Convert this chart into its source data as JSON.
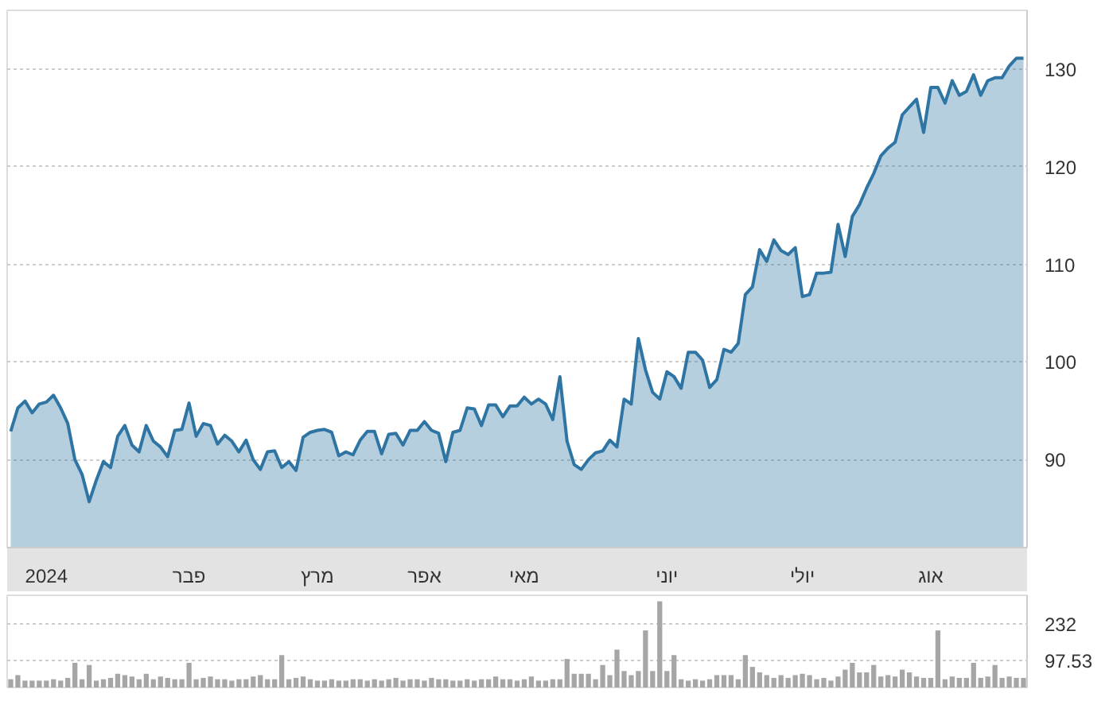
{
  "chart_data": [
    {
      "type": "area",
      "categories": [
        null,
        null,
        null,
        null,
        null,
        "2024",
        null,
        null,
        null,
        null,
        null,
        null,
        null,
        null,
        null,
        null,
        null,
        null,
        null,
        null,
        null,
        null,
        null,
        null,
        null,
        "פבר",
        null,
        null,
        null,
        null,
        null,
        null,
        null,
        null,
        null,
        null,
        null,
        null,
        null,
        null,
        null,
        null,
        null,
        "מרץ",
        null,
        null,
        null,
        null,
        null,
        null,
        null,
        null,
        null,
        null,
        null,
        null,
        null,
        null,
        "אפר",
        null,
        null,
        null,
        null,
        null,
        null,
        null,
        null,
        null,
        null,
        null,
        null,
        null,
        "מאי",
        null,
        null,
        null,
        null,
        null,
        null,
        null,
        null,
        null,
        null,
        null,
        null,
        null,
        null,
        null,
        null,
        null,
        null,
        null,
        "יוני",
        null,
        null,
        null,
        null,
        null,
        null,
        null,
        null,
        null,
        null,
        null,
        null,
        null,
        null,
        null,
        null,
        null,
        null,
        "יולי",
        null,
        null,
        null,
        null,
        null,
        null,
        null,
        null,
        null,
        null,
        null,
        null,
        null,
        null,
        null,
        null,
        null,
        "אוג",
        null,
        null,
        null,
        null,
        null,
        null,
        null,
        null,
        null,
        null,
        null,
        null,
        null
      ],
      "series": [
        {
          "color": "#2f75a4",
          "values": [
            92.9,
            95.3,
            96.0,
            94.8,
            95.7,
            95.9,
            96.6,
            95.3,
            93.7,
            90.0,
            88.5,
            85.7,
            87.9,
            89.8,
            89.2,
            92.4,
            93.5,
            91.5,
            90.8,
            93.5,
            91.9,
            91.3,
            90.3,
            93.0,
            93.1,
            95.8,
            92.4,
            93.7,
            93.5,
            91.6,
            92.5,
            91.9,
            90.8,
            92.0,
            90.0,
            89.0,
            90.8,
            90.9,
            89.2,
            89.8,
            88.9,
            92.3,
            92.8,
            93.0,
            93.1,
            92.8,
            90.4,
            90.8,
            90.5,
            92.0,
            92.9,
            92.9,
            90.6,
            92.6,
            92.7,
            91.5,
            93.0,
            93.0,
            93.9,
            93.0,
            92.7,
            89.8,
            92.8,
            93.0,
            95.3,
            95.2,
            93.5,
            95.6,
            95.6,
            94.4,
            95.5,
            95.5,
            96.4,
            95.7,
            96.2,
            95.7,
            94.1,
            98.5,
            91.9,
            89.5,
            89.0,
            90.0,
            90.7,
            90.9,
            92.0,
            91.3,
            96.2,
            95.7,
            102.4,
            99.2,
            96.9,
            96.2,
            99.0,
            98.5,
            97.3,
            101.0,
            101.0,
            100.2,
            97.4,
            98.2,
            101.3,
            101.0,
            101.9,
            106.9,
            107.7,
            111.5,
            110.3,
            112.5,
            111.4,
            111.0,
            111.7,
            106.7,
            106.9,
            109.1,
            109.1,
            109.2,
            114.1,
            110.8,
            114.9,
            116.1,
            117.8,
            119.3,
            121.1,
            121.9,
            122.5,
            125.3,
            126.1,
            126.9,
            123.5,
            128.1,
            128.1,
            126.5,
            128.8,
            127.3,
            127.7,
            129.4,
            127.3,
            128.8,
            129.1,
            129.1,
            130.3,
            131.1,
            131.1
          ]
        }
      ],
      "ylim": [
        81,
        136
      ],
      "yticks": [
        90,
        100,
        110,
        120,
        130
      ],
      "grid": "y",
      "line_style": "solid"
    },
    {
      "type": "bar",
      "categories": [
        null,
        null,
        null,
        null,
        null,
        null,
        null,
        null,
        null,
        null,
        null,
        null,
        null,
        null,
        null,
        null,
        null,
        null,
        null,
        null,
        null,
        null,
        null,
        null,
        null,
        null,
        null,
        null,
        null,
        null,
        null,
        null,
        null,
        null,
        null,
        null,
        null,
        null,
        null,
        null,
        null,
        null,
        null,
        null,
        null,
        null,
        null,
        null,
        null,
        null,
        null,
        null,
        null,
        null,
        null,
        null,
        null,
        null,
        null,
        null,
        null,
        null,
        null,
        null,
        null,
        null,
        null,
        null,
        null,
        null,
        null,
        null,
        null,
        null,
        null,
        null,
        null,
        null,
        null,
        null,
        null,
        null,
        null,
        null,
        null,
        null,
        null,
        null,
        null,
        null,
        null,
        null,
        null,
        null,
        null,
        null,
        null,
        null,
        null,
        null,
        null,
        null,
        null,
        null,
        null,
        null,
        null,
        null,
        null,
        null,
        null,
        null,
        null,
        null,
        null,
        null,
        null,
        null,
        null,
        null,
        null,
        null,
        null,
        null,
        null,
        null,
        null,
        null,
        null,
        null,
        null,
        null,
        null,
        null,
        null,
        null,
        null,
        null,
        null,
        null,
        null,
        null,
        null
      ],
      "series": [
        {
          "color": "#a6a6a6",
          "values": [
            30,
            45,
            25,
            25,
            25,
            25,
            30,
            25,
            35,
            90,
            30,
            82,
            25,
            30,
            35,
            50,
            45,
            40,
            30,
            50,
            30,
            40,
            35,
            30,
            30,
            90,
            30,
            35,
            40,
            30,
            30,
            25,
            30,
            30,
            40,
            45,
            30,
            30,
            118,
            30,
            35,
            40,
            30,
            25,
            25,
            30,
            25,
            25,
            30,
            30,
            25,
            30,
            25,
            30,
            35,
            25,
            30,
            30,
            25,
            35,
            30,
            30,
            25,
            25,
            30,
            25,
            30,
            30,
            40,
            30,
            30,
            25,
            30,
            40,
            25,
            25,
            30,
            30,
            104,
            50,
            50,
            50,
            30,
            82,
            45,
            138,
            60,
            45,
            60,
            208,
            60,
            314,
            60,
            118,
            30,
            25,
            30,
            25,
            30,
            45,
            45,
            45,
            30,
            118,
            75,
            55,
            45,
            35,
            45,
            35,
            45,
            50,
            45,
            30,
            35,
            25,
            40,
            65,
            90,
            55,
            55,
            82,
            40,
            45,
            40,
            65,
            55,
            40,
            35,
            35,
            208,
            30,
            40,
            35,
            35,
            90,
            35,
            40,
            82,
            35,
            40,
            35,
            35
          ]
        }
      ],
      "ylim": [
        0,
        336
      ],
      "yticks": [
        97.53,
        232
      ],
      "grid": "y",
      "tick_labels": "y"
    }
  ]
}
